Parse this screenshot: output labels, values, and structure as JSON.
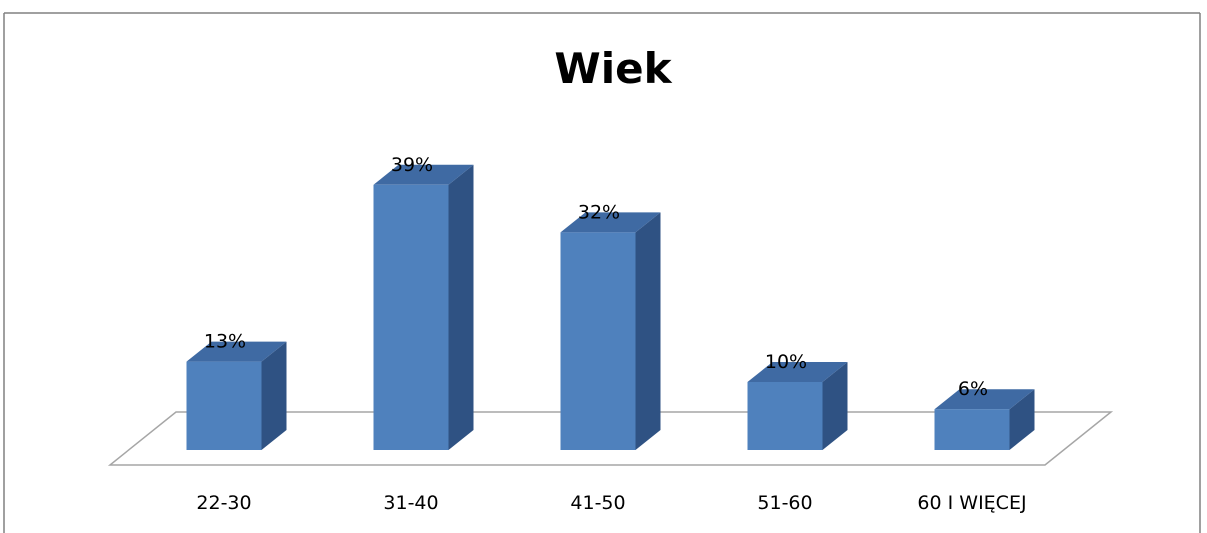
{
  "chart_data": {
    "type": "bar",
    "title": "Wiek",
    "categories": [
      "22-30",
      "31-40",
      "41-50",
      "51-60",
      "60 I WIĘCEJ"
    ],
    "values": [
      13,
      39,
      32,
      10,
      6
    ],
    "value_labels": [
      "13%",
      "39%",
      "32%",
      "10%",
      "6%"
    ],
    "ylim": [
      0,
      40
    ],
    "grid": false,
    "legend": "none",
    "style": "3d-column"
  },
  "colors": {
    "bar_front": "#4f81bd",
    "bar_top": "#3f6aa3",
    "bar_side": "#2f5283",
    "floor_line": "#a6a6a6",
    "frame_line": "#808080"
  }
}
